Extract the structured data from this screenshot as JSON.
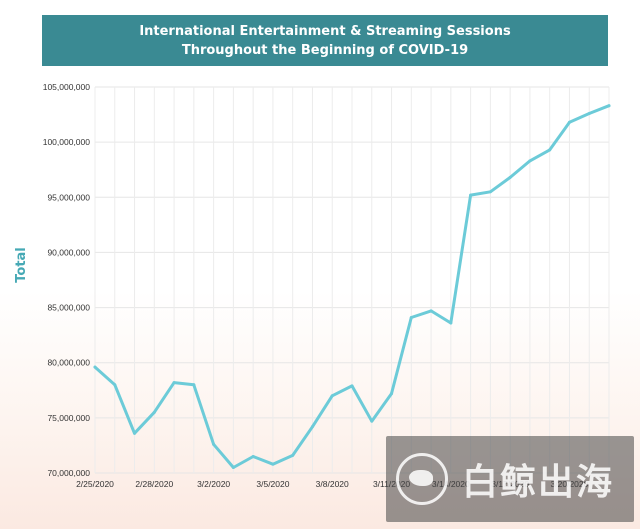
{
  "chart_data": {
    "type": "line",
    "title": "International Entertainment & Streaming Sessions Throughout the Beginning of COVID-19",
    "title_lines": [
      "International Entertainment & Streaming Sessions",
      "Throughout the Beginning of COVID-19"
    ],
    "xlabel": "",
    "ylabel": "Total",
    "grid": true,
    "legend": "none",
    "line_color": "#6ccbd8",
    "x_tick_labels": [
      "2/25/2020",
      "2/28/2020",
      "3/2/2020",
      "3/5/2020",
      "3/8/2020",
      "3/11/2020",
      "3/14/2020",
      "3/17/2020",
      "3/20/2020"
    ],
    "y_tick_labels": [
      "70,000,000",
      "75,000,000",
      "80,000,000",
      "85,000,000",
      "90,000,000",
      "95,000,000",
      "100,000,000",
      "105,000,000"
    ],
    "ylim": [
      70000000,
      105000000
    ],
    "x": [
      "2/25/2020",
      "2/26/2020",
      "2/27/2020",
      "2/28/2020",
      "2/29/2020",
      "3/1/2020",
      "3/2/2020",
      "3/3/2020",
      "3/4/2020",
      "3/5/2020",
      "3/6/2020",
      "3/7/2020",
      "3/8/2020",
      "3/9/2020",
      "3/10/2020",
      "3/11/2020",
      "3/12/2020",
      "3/13/2020",
      "3/14/2020",
      "3/15/2020",
      "3/16/2020",
      "3/17/2020",
      "3/18/2020",
      "3/19/2020",
      "3/20/2020",
      "3/21/2020",
      "3/22/2020"
    ],
    "values": [
      79600000,
      78000000,
      73600000,
      75500000,
      78200000,
      78000000,
      72600000,
      70500000,
      71500000,
      70800000,
      71600000,
      74200000,
      77000000,
      77900000,
      74700000,
      77200000,
      84100000,
      84700000,
      83600000,
      95200000,
      95500000,
      96800000,
      98300000,
      99300000,
      101800000,
      102600000,
      103300000
    ]
  },
  "watermark": {
    "text": "白鲸出海",
    "logo_icon": "whale-logo-icon"
  }
}
